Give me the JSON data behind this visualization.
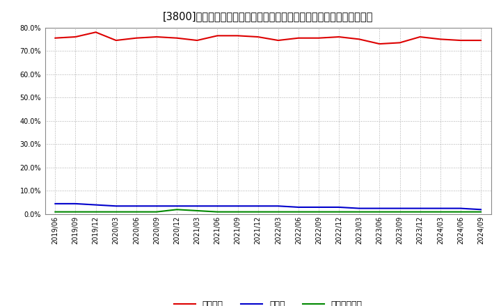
{
  "title": "[3800]　自己資本、のれん、繰延税金資産の総資産に対する比率の推移",
  "x_labels": [
    "2019/06",
    "2019/09",
    "2019/12",
    "2020/03",
    "2020/06",
    "2020/09",
    "2020/12",
    "2021/03",
    "2021/06",
    "2021/09",
    "2021/12",
    "2022/03",
    "2022/06",
    "2022/09",
    "2022/12",
    "2023/03",
    "2023/06",
    "2023/09",
    "2023/12",
    "2024/03",
    "2024/06",
    "2024/09"
  ],
  "equity": [
    75.5,
    76.0,
    78.0,
    74.5,
    75.5,
    76.0,
    75.5,
    74.5,
    76.5,
    76.5,
    76.0,
    74.5,
    75.5,
    75.5,
    76.0,
    75.0,
    73.0,
    73.5,
    76.0,
    75.0,
    74.5,
    74.5
  ],
  "noren": [
    4.5,
    4.5,
    4.0,
    3.5,
    3.5,
    3.5,
    3.5,
    3.5,
    3.5,
    3.5,
    3.5,
    3.5,
    3.0,
    3.0,
    3.0,
    2.5,
    2.5,
    2.5,
    2.5,
    2.5,
    2.5,
    2.0
  ],
  "deferred_tax": [
    1.0,
    1.0,
    1.0,
    1.0,
    1.0,
    1.0,
    2.0,
    1.5,
    1.0,
    1.0,
    1.0,
    1.0,
    1.0,
    1.0,
    1.0,
    1.0,
    1.0,
    1.0,
    1.0,
    1.0,
    1.0,
    1.0
  ],
  "equity_color": "#dd0000",
  "noren_color": "#0000cc",
  "deferred_tax_color": "#008800",
  "bg_color": "#ffffff",
  "plot_bg_color": "#ffffff",
  "grid_color": "#aaaaaa",
  "ylim": [
    0,
    80
  ],
  "yticks": [
    0,
    10,
    20,
    30,
    40,
    50,
    60,
    70,
    80
  ],
  "legend_labels": [
    "自己資本",
    "のれん",
    "繰延税金資産"
  ],
  "line_width": 1.5,
  "title_fontsize": 10.5,
  "tick_fontsize": 7,
  "legend_fontsize": 9
}
